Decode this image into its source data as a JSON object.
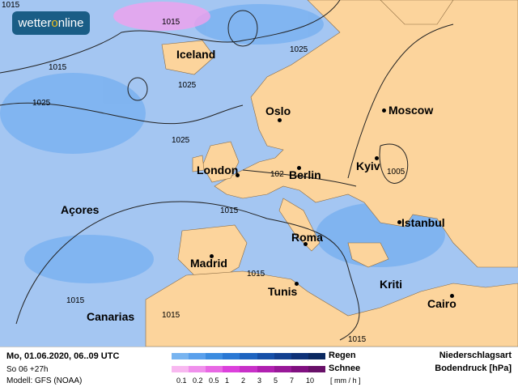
{
  "logo": {
    "text_a": "wetter",
    "text_b": "o",
    "text_c": "nline"
  },
  "cities": [
    "Iceland",
    "Oslo",
    "Moscow",
    "London",
    "Berlin",
    "Kyiv",
    "Açores",
    "Istanbul",
    "Roma",
    "Madrid",
    "Tunis",
    "Kriti",
    "Canarias",
    "Cairo"
  ],
  "isobars": [
    "1015",
    "1025",
    "1015",
    "1025",
    "1025",
    "1025",
    "102",
    "1005",
    "1015",
    "1015",
    "1015",
    "1015",
    "1015",
    "1015"
  ],
  "footer": {
    "date": "Mo, 01.06.2020, 06..09 UTC",
    "run": "So 06 +27h",
    "model": "Modell: GFS (NOAA)",
    "rain_label": "Regen",
    "snow_label": "Schnee",
    "scale": [
      "0.1",
      "0.2",
      "0.5",
      "1",
      "2",
      "3",
      "5",
      "7",
      "10"
    ],
    "unit": "[ mm / h ]",
    "title1": "Niederschlagsart",
    "title2": "Bodendruck [hPa]"
  },
  "colors": {
    "sea": "#a4c6f2",
    "land": "#fcd49c",
    "rain": [
      "#78b4f0",
      "#5aa0ec",
      "#3c8ce0",
      "#2a78d4",
      "#1e64c0",
      "#1650a8",
      "#124090",
      "#0e3278",
      "#0a2860"
    ],
    "snow": [
      "#f8b8f0",
      "#f090ec",
      "#e868e4",
      "#dc40dc",
      "#c830c8",
      "#b020b0",
      "#981898",
      "#801080",
      "#681068"
    ]
  }
}
